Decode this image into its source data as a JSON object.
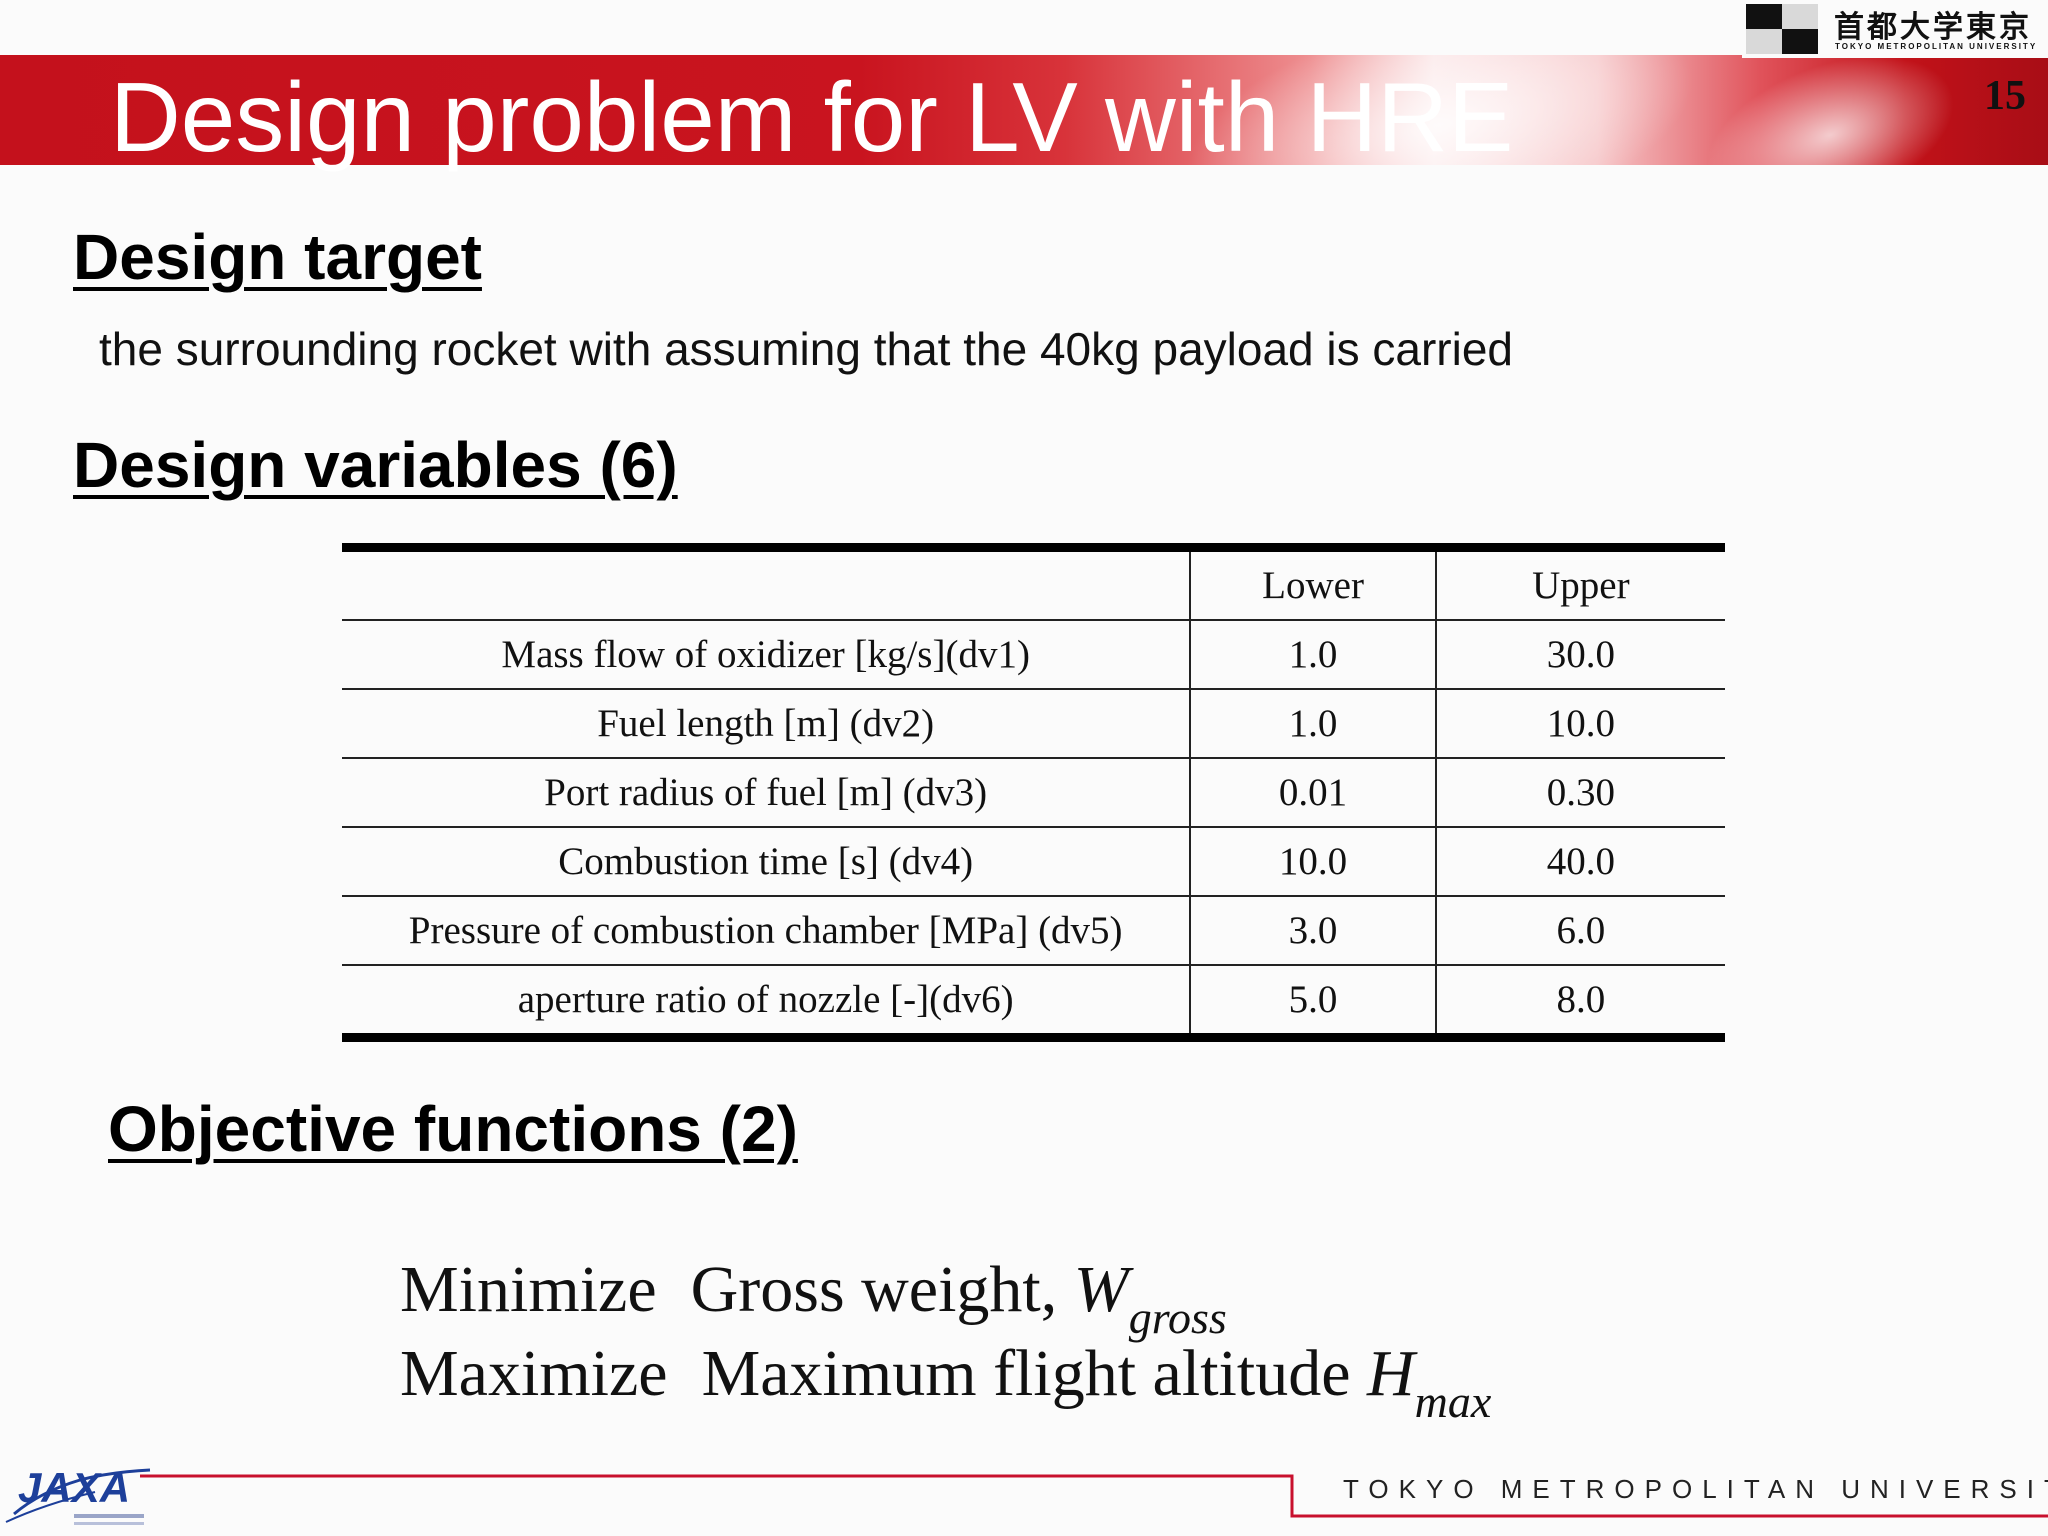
{
  "slide": {
    "title": "Design problem for LV with HRE",
    "page_number": "15"
  },
  "logo": {
    "japanese": "首都大学東京",
    "english": "TOKYO METROPOLITAN UNIVERSITY"
  },
  "sections": {
    "design_target_heading": "Design target",
    "design_target_text": "the surrounding rocket with assuming that the 40kg payload is carried",
    "design_variables_heading": "Design variables (6)",
    "objective_heading": "Objective functions (2)"
  },
  "table": {
    "headers": [
      "",
      "Lower",
      "Upper"
    ],
    "rows": [
      {
        "name": "Mass flow of oxidizer [kg/s](dv1)",
        "lower": "1.0",
        "upper": "30.0"
      },
      {
        "name": "Fuel length [m] (dv2)",
        "lower": "1.0",
        "upper": "10.0"
      },
      {
        "name": "Port radius of fuel [m] (dv3)",
        "lower": "0.01",
        "upper": "0.30"
      },
      {
        "name": "Combustion time [s] (dv4)",
        "lower": "10.0",
        "upper": "40.0"
      },
      {
        "name": "Pressure of combustion chamber [MPa] (dv5)",
        "lower": "3.0",
        "upper": "6.0"
      },
      {
        "name": "aperture ratio of nozzle [-](dv6)",
        "lower": "5.0",
        "upper": "8.0"
      }
    ]
  },
  "objectives": {
    "line1": {
      "verb": "Minimize",
      "text": "Gross weight,",
      "symbol": "W",
      "subscript": "gross"
    },
    "line2": {
      "verb": "Maximize",
      "text": "Maximum flight altitude",
      "symbol": "H",
      "subscript": "max"
    }
  },
  "footer": {
    "jaxa_label": "JAXA",
    "university": "TOKYO METROPOLITAN UNIVERSITY"
  },
  "colors": {
    "banner_red": "#c4111c",
    "footer_line_red": "#c8102e"
  }
}
